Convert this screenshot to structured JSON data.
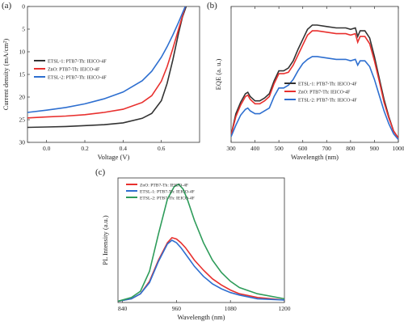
{
  "chart_data": [
    {
      "panel": "(a)",
      "type": "line",
      "xlabel": "Voltage (V)",
      "ylabel": "Current density (mA/cm²)",
      "xlim": [
        -0.1,
        0.8
      ],
      "ylim": [
        0,
        30
      ],
      "y_inverted": true,
      "xticks": [
        "0.0",
        "0.2",
        "0.4",
        "0.6"
      ],
      "yticks": [
        "0",
        "5",
        "10",
        "15",
        "20",
        "25",
        "30"
      ],
      "legend_position": "center-left",
      "series": [
        {
          "name": "ETSL-1: PTB7-Th: IEICO-4F",
          "color": "#333333",
          "x": [
            -0.1,
            0.0,
            0.1,
            0.2,
            0.3,
            0.4,
            0.5,
            0.55,
            0.6,
            0.63,
            0.66,
            0.69,
            0.71,
            0.73
          ],
          "y": [
            26.7,
            26.6,
            26.5,
            26.3,
            26.1,
            25.7,
            24.7,
            23.6,
            20.8,
            17.0,
            11.8,
            5.9,
            2.4,
            0.0
          ]
        },
        {
          "name": "ZnO: PTB7-Th: IEICO-4F",
          "color": "#e8302e",
          "x": [
            -0.1,
            0.0,
            0.1,
            0.2,
            0.3,
            0.4,
            0.5,
            0.55,
            0.6,
            0.63,
            0.66,
            0.69,
            0.71,
            0.725
          ],
          "y": [
            24.6,
            24.4,
            24.2,
            23.9,
            23.4,
            22.7,
            21.2,
            19.7,
            16.5,
            13.3,
            9.3,
            5.0,
            2.2,
            0.0
          ]
        },
        {
          "name": "ETSL-2: PTB7-Th: IEICO-4F",
          "color": "#2e6fd0",
          "x": [
            -0.1,
            0.0,
            0.1,
            0.2,
            0.3,
            0.4,
            0.5,
            0.55,
            0.6,
            0.63,
            0.66,
            0.69,
            0.71,
            0.725
          ],
          "y": [
            23.4,
            22.9,
            22.3,
            21.5,
            20.4,
            18.9,
            16.4,
            14.3,
            11.2,
            8.9,
            6.3,
            3.5,
            1.5,
            0.0
          ]
        }
      ]
    },
    {
      "panel": "(b)",
      "type": "line",
      "xlabel": "Wavelength (nm)",
      "ylabel": "EQE (a. u.)",
      "xlim": [
        300,
        1000
      ],
      "xticks": [
        "300",
        "400",
        "500",
        "600",
        "700",
        "800",
        "900",
        "1000"
      ],
      "ylim": [
        0,
        0.95
      ],
      "legend_position": "center",
      "series": [
        {
          "name": "ETSL-1: PTB7-Th: IEICO-4F",
          "color": "#333333",
          "x": [
            300,
            320,
            340,
            360,
            370,
            380,
            400,
            420,
            440,
            460,
            480,
            500,
            520,
            540,
            560,
            580,
            600,
            620,
            640,
            660,
            700,
            740,
            780,
            800,
            820,
            830,
            840,
            860,
            880,
            900,
            920,
            940,
            960,
            980,
            1000
          ],
          "y": [
            0.05,
            0.2,
            0.28,
            0.34,
            0.35,
            0.32,
            0.29,
            0.29,
            0.31,
            0.34,
            0.43,
            0.5,
            0.5,
            0.52,
            0.57,
            0.65,
            0.72,
            0.79,
            0.82,
            0.82,
            0.81,
            0.8,
            0.8,
            0.79,
            0.8,
            0.74,
            0.78,
            0.78,
            0.73,
            0.6,
            0.45,
            0.3,
            0.18,
            0.08,
            0.03
          ]
        },
        {
          "name": "ZnO: PTB7-Th: IEICO-4F",
          "color": "#e8302e",
          "x": [
            300,
            320,
            340,
            360,
            370,
            380,
            400,
            420,
            440,
            460,
            480,
            500,
            520,
            540,
            560,
            580,
            600,
            620,
            640,
            660,
            700,
            740,
            780,
            800,
            820,
            830,
            840,
            860,
            880,
            900,
            920,
            940,
            960,
            980,
            1000
          ],
          "y": [
            0.05,
            0.18,
            0.26,
            0.32,
            0.33,
            0.3,
            0.27,
            0.27,
            0.29,
            0.32,
            0.41,
            0.48,
            0.48,
            0.49,
            0.54,
            0.61,
            0.68,
            0.75,
            0.78,
            0.78,
            0.77,
            0.76,
            0.76,
            0.75,
            0.76,
            0.7,
            0.74,
            0.74,
            0.69,
            0.57,
            0.43,
            0.28,
            0.17,
            0.08,
            0.03
          ]
        },
        {
          "name": "ETSL-2: PTB7-Th: IEICO-4F",
          "color": "#2e6fd0",
          "x": [
            300,
            320,
            340,
            360,
            370,
            380,
            400,
            420,
            440,
            460,
            480,
            500,
            520,
            540,
            560,
            580,
            600,
            620,
            640,
            660,
            700,
            740,
            780,
            800,
            820,
            830,
            840,
            860,
            880,
            900,
            920,
            940,
            960,
            980,
            1000
          ],
          "y": [
            0.04,
            0.12,
            0.19,
            0.23,
            0.24,
            0.22,
            0.2,
            0.2,
            0.22,
            0.24,
            0.32,
            0.38,
            0.38,
            0.4,
            0.44,
            0.5,
            0.55,
            0.58,
            0.6,
            0.6,
            0.59,
            0.58,
            0.58,
            0.57,
            0.58,
            0.54,
            0.57,
            0.57,
            0.53,
            0.44,
            0.33,
            0.22,
            0.13,
            0.06,
            0.02
          ]
        }
      ]
    },
    {
      "panel": "(c)",
      "type": "line",
      "xlabel": "Wavelength (nm)",
      "ylabel": "PL Intensity (a.u.)",
      "xlim": [
        830,
        1200
      ],
      "xticks": [
        "840",
        "960",
        "1080",
        "1200"
      ],
      "ylim": [
        0,
        1.0
      ],
      "legend_position": "top-left",
      "series": [
        {
          "name": "ZnO: PTB7-Th: IEICO-4F",
          "color": "#e8302e",
          "x": [
            830,
            860,
            880,
            900,
            920,
            940,
            950,
            960,
            970,
            980,
            990,
            1000,
            1020,
            1040,
            1060,
            1080,
            1100,
            1140,
            1200
          ],
          "y": [
            0.01,
            0.03,
            0.07,
            0.17,
            0.34,
            0.48,
            0.52,
            0.51,
            0.48,
            0.44,
            0.39,
            0.34,
            0.26,
            0.19,
            0.14,
            0.1,
            0.07,
            0.04,
            0.02
          ]
        },
        {
          "name": "ETSL-1: PTB7-Th: IEICO-4F",
          "color": "#2e6fd0",
          "x": [
            830,
            860,
            880,
            900,
            920,
            940,
            950,
            960,
            970,
            980,
            990,
            1000,
            1020,
            1040,
            1060,
            1080,
            1100,
            1140,
            1200
          ],
          "y": [
            0.01,
            0.03,
            0.07,
            0.16,
            0.33,
            0.47,
            0.5,
            0.48,
            0.44,
            0.39,
            0.34,
            0.29,
            0.21,
            0.15,
            0.11,
            0.08,
            0.06,
            0.03,
            0.02
          ]
        },
        {
          "name": "ETSL-2: PTB7-Th: IEICO-4F",
          "color": "#2e9c5a",
          "x": [
            830,
            860,
            880,
            900,
            920,
            940,
            955,
            965,
            975,
            985,
            1000,
            1020,
            1040,
            1060,
            1080,
            1100,
            1140,
            1200
          ],
          "y": [
            0.01,
            0.04,
            0.09,
            0.25,
            0.55,
            0.83,
            0.93,
            0.95,
            0.91,
            0.82,
            0.66,
            0.48,
            0.34,
            0.24,
            0.17,
            0.12,
            0.07,
            0.03
          ]
        }
      ]
    }
  ]
}
